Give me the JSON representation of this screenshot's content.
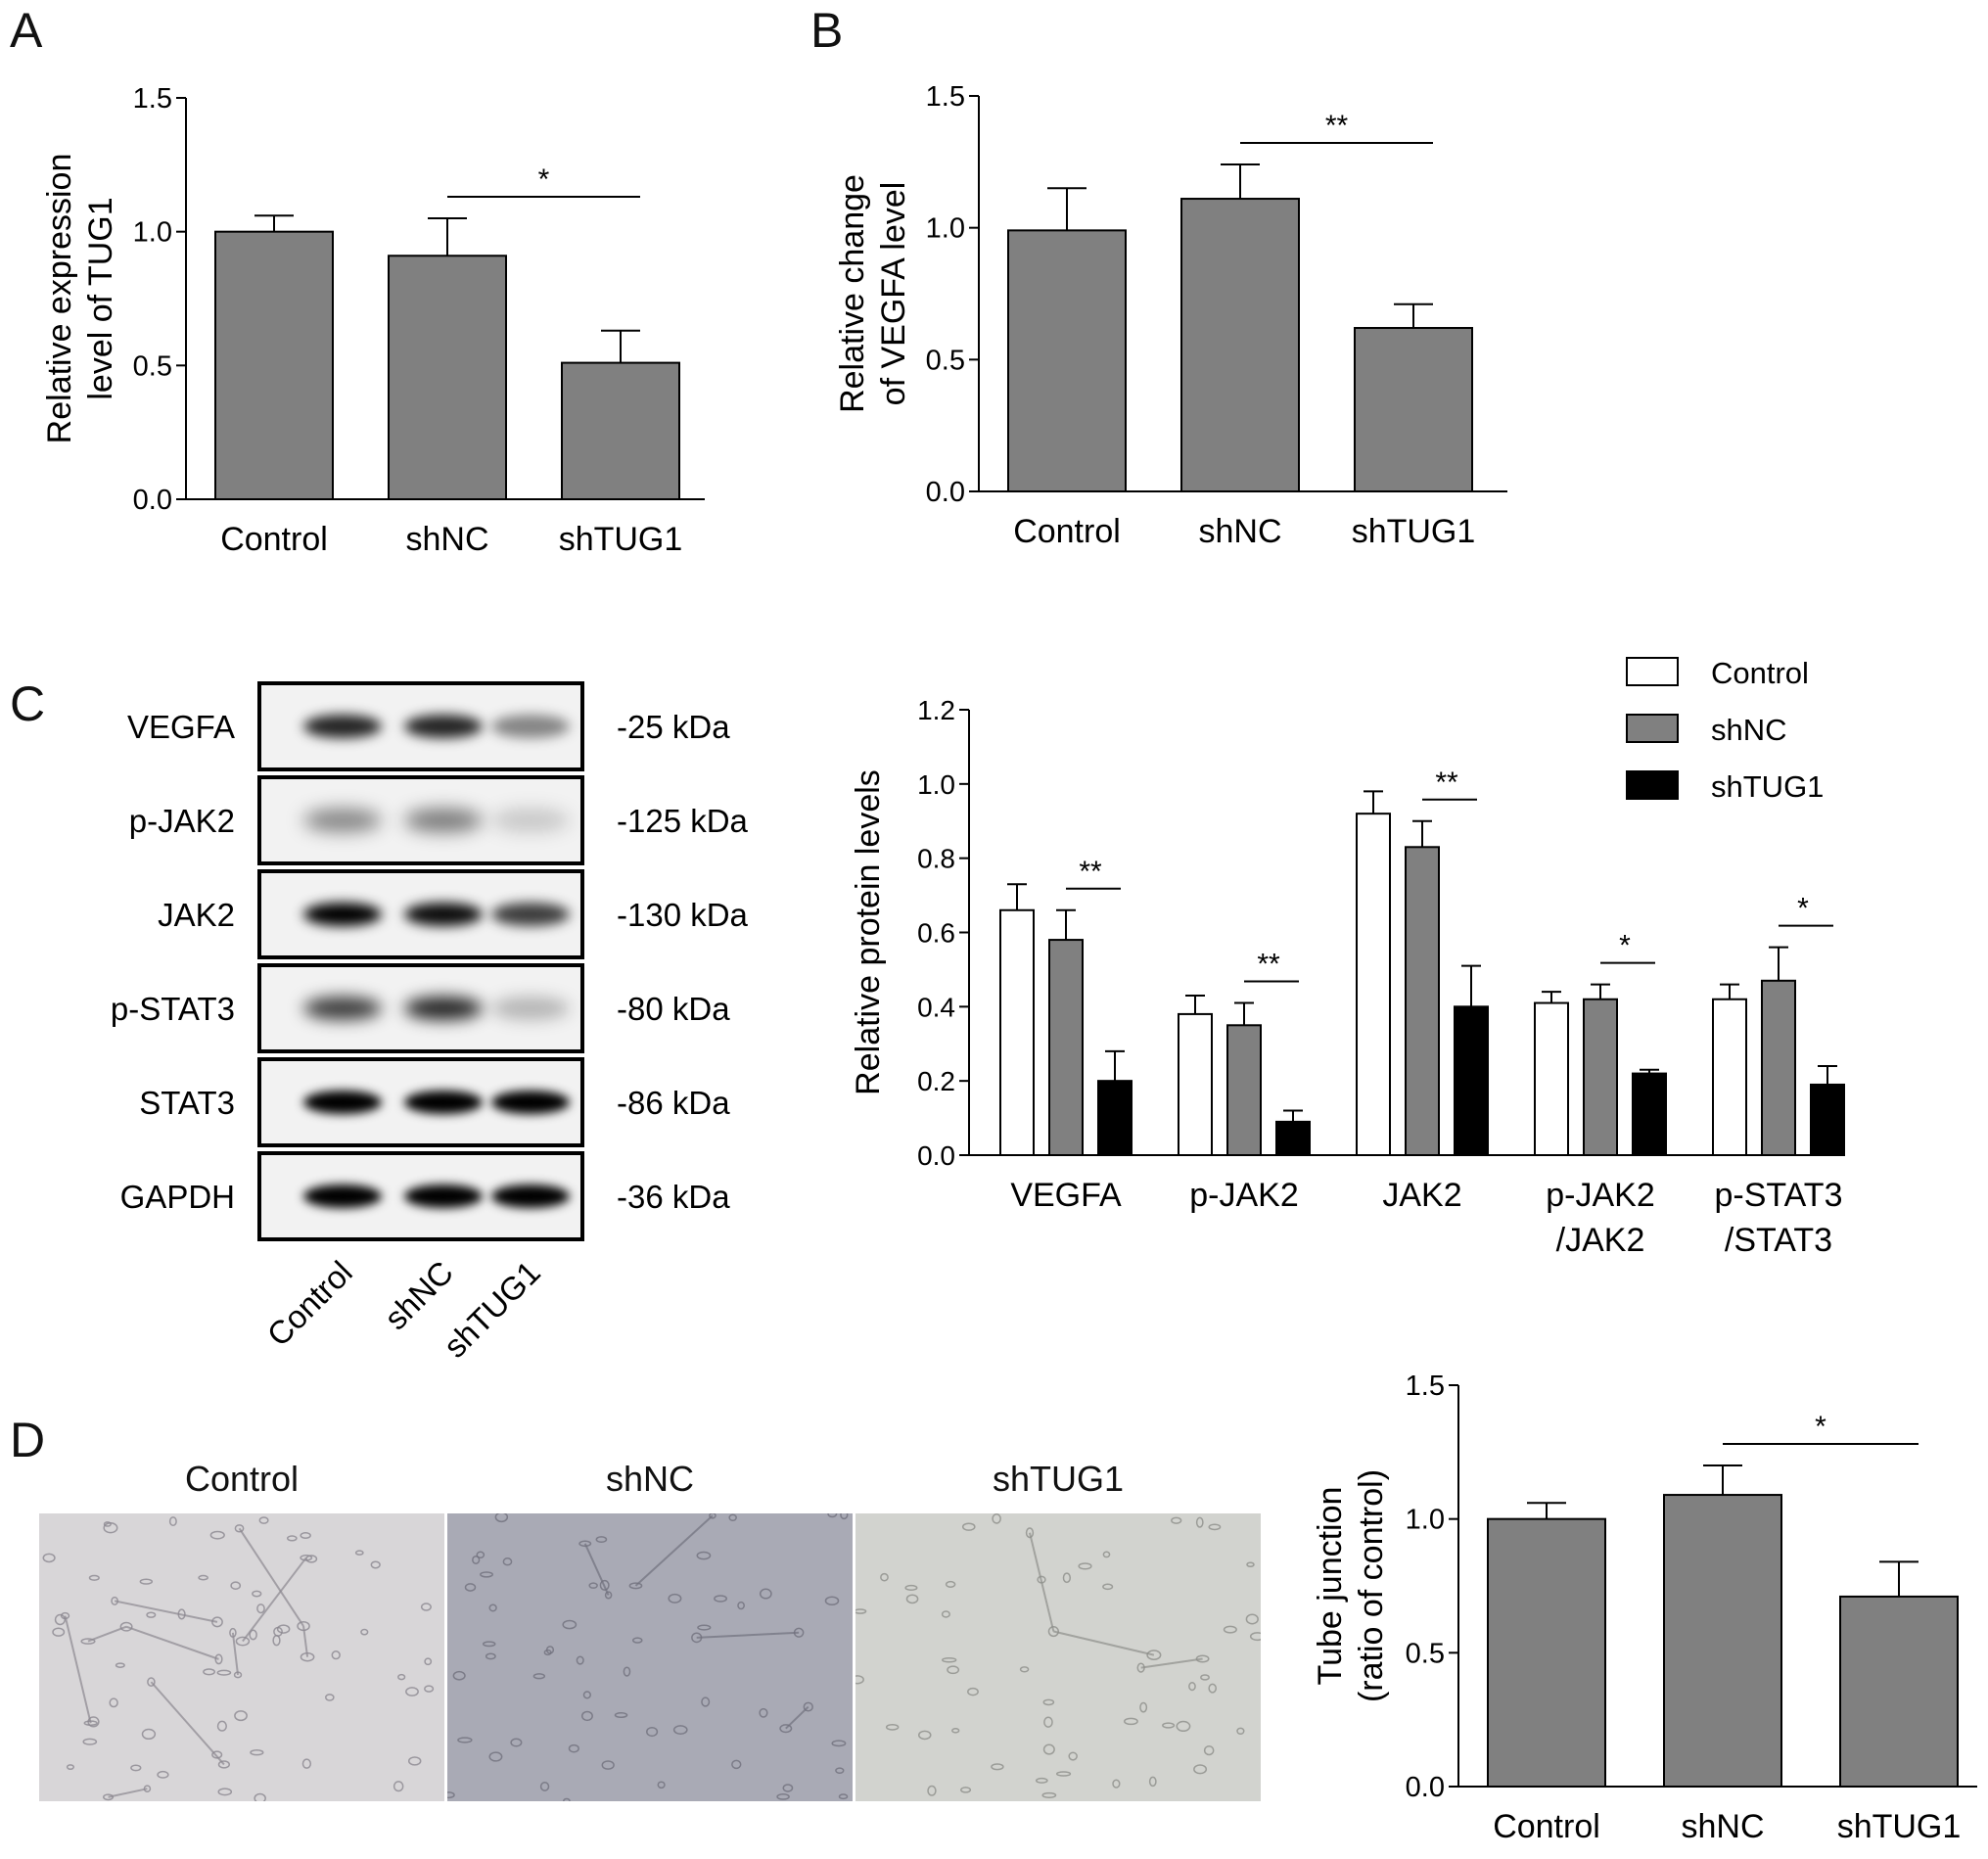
{
  "panels": {
    "a": "A",
    "b": "B",
    "c": "C",
    "d": "D"
  },
  "groups": [
    "Control",
    "shNC",
    "shTUG1"
  ],
  "chart_data": [
    {
      "id": "A",
      "type": "bar",
      "categories": [
        "Control",
        "shNC",
        "shTUG1"
      ],
      "values": [
        1.0,
        0.91,
        0.51
      ],
      "errors": [
        0.06,
        0.14,
        0.12
      ],
      "ylabel": "Relative expression level of TUG1",
      "ylabel_lines": [
        "Relative expression",
        "level of TUG1"
      ],
      "ylim": [
        0,
        1.5
      ],
      "yticks": [
        "0.0",
        "0.5",
        "1.0",
        "1.5"
      ],
      "significance": [
        {
          "from": 1,
          "to": 2,
          "label": "*"
        }
      ],
      "color": "#808080"
    },
    {
      "id": "B",
      "type": "bar",
      "categories": [
        "Control",
        "shNC",
        "shTUG1"
      ],
      "values": [
        0.99,
        1.11,
        0.62
      ],
      "errors": [
        0.16,
        0.13,
        0.09
      ],
      "ylabel": "Relative change of VEGFA level",
      "ylabel_lines": [
        "Relative change",
        "of VEGFA level"
      ],
      "ylim": [
        0,
        1.5
      ],
      "yticks": [
        "0.0",
        "0.5",
        "1.0",
        "1.5"
      ],
      "significance": [
        {
          "from": 1,
          "to": 2,
          "label": "**"
        }
      ],
      "color": "#808080"
    },
    {
      "id": "C",
      "type": "bar",
      "category_lines": [
        [
          "VEGFA"
        ],
        [
          "p-JAK2"
        ],
        [
          "JAK2"
        ],
        [
          "p-JAK2",
          "/JAK2"
        ],
        [
          "p-STAT3",
          "/STAT3"
        ]
      ],
      "series": [
        {
          "name": "Control",
          "color": "#ffffff",
          "values": [
            0.66,
            0.38,
            0.92,
            0.41,
            0.42
          ],
          "errors": [
            0.07,
            0.05,
            0.06,
            0.03,
            0.04
          ]
        },
        {
          "name": "shNC",
          "color": "#808080",
          "values": [
            0.58,
            0.35,
            0.83,
            0.42,
            0.47
          ],
          "errors": [
            0.08,
            0.06,
            0.07,
            0.04,
            0.09
          ]
        },
        {
          "name": "shTUG1",
          "color": "#000000",
          "values": [
            0.2,
            0.09,
            0.4,
            0.22,
            0.19
          ],
          "errors": [
            0.08,
            0.03,
            0.11,
            0.01,
            0.05
          ]
        }
      ],
      "ylabel": "Relative protein levels",
      "ylim": [
        0,
        1.2
      ],
      "yticks": [
        "0.0",
        "0.2",
        "0.4",
        "0.6",
        "0.8",
        "1.0",
        "1.2"
      ],
      "significance": [
        {
          "category": 0,
          "label": "**"
        },
        {
          "category": 1,
          "label": "**"
        },
        {
          "category": 2,
          "label": "**"
        },
        {
          "category": 3,
          "label": "*"
        },
        {
          "category": 4,
          "label": "*"
        }
      ],
      "legend_position": "top-right"
    },
    {
      "id": "D",
      "type": "bar",
      "categories": [
        "Control",
        "shNC",
        "shTUG1"
      ],
      "values": [
        1.0,
        1.09,
        0.71
      ],
      "errors": [
        0.06,
        0.11,
        0.13
      ],
      "ylabel": "Tube junction (ratio of control)",
      "ylabel_lines": [
        "Tube junction",
        "(ratio of control)"
      ],
      "ylim": [
        0,
        1.5
      ],
      "yticks": [
        "0.0",
        "0.5",
        "1.0",
        "1.5"
      ],
      "significance": [
        {
          "from": 1,
          "to": 2,
          "label": "*"
        }
      ],
      "color": "#808080"
    }
  ],
  "blot": {
    "rows": [
      {
        "protein": "VEGFA",
        "size": "-25 kDa",
        "intensity": [
          0.85,
          0.85,
          0.45
        ],
        "blur": 6
      },
      {
        "protein": "p-JAK2",
        "size": "-125 kDa",
        "intensity": [
          0.45,
          0.5,
          0.18
        ],
        "blur": 9
      },
      {
        "protein": "JAK2",
        "size": "-130 kDa",
        "intensity": [
          1.0,
          0.95,
          0.75
        ],
        "blur": 6
      },
      {
        "protein": "p-STAT3",
        "size": "-80 kDa",
        "intensity": [
          0.75,
          0.85,
          0.25
        ],
        "blur": 8
      },
      {
        "protein": "STAT3",
        "size": "-86 kDa",
        "intensity": [
          1.0,
          1.0,
          1.0
        ],
        "blur": 5
      },
      {
        "protein": "GAPDH",
        "size": "-36 kDa",
        "intensity": [
          1.0,
          1.0,
          1.0
        ],
        "blur": 5
      }
    ],
    "lane_labels": [
      "Control",
      "shNC",
      "shTUG1"
    ]
  },
  "micrographs": [
    {
      "title": "Control",
      "bg": "#d8d6d8"
    },
    {
      "title": "shNC",
      "bg": "#a9aab5"
    },
    {
      "title": "shTUG1",
      "bg": "#d2d3cf"
    }
  ]
}
